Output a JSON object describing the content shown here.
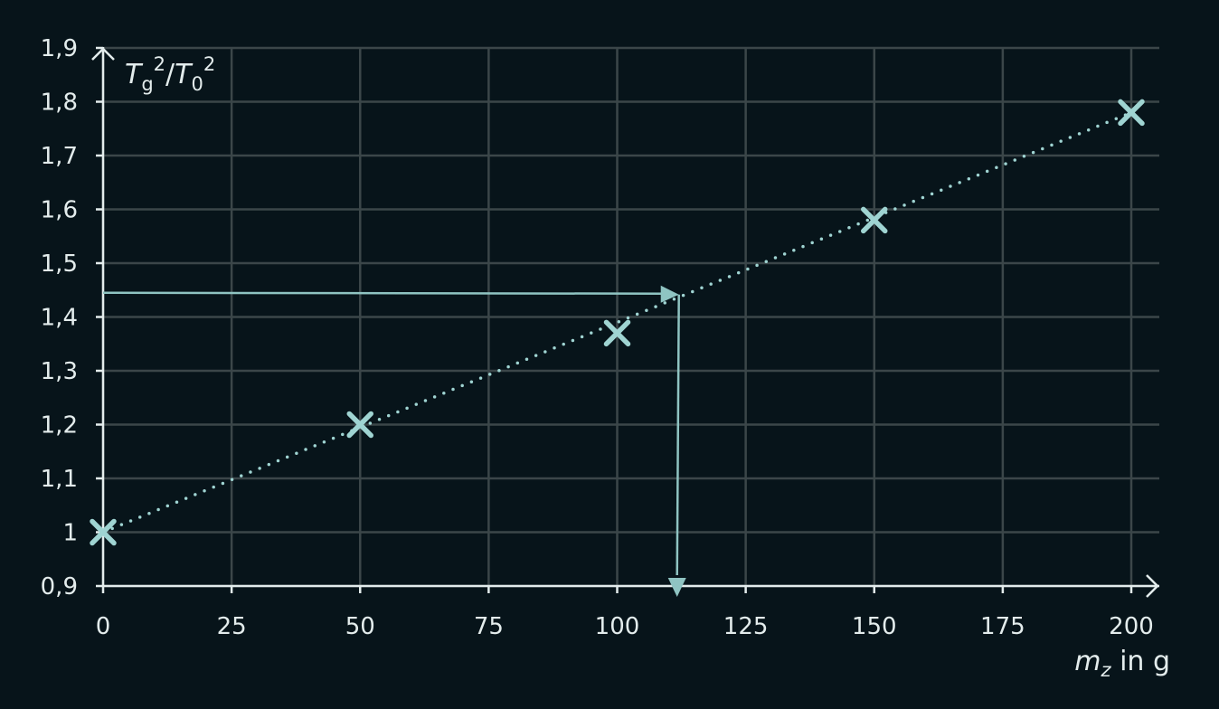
{
  "chart_data": {
    "type": "scatter",
    "x": [
      0,
      50,
      100,
      150,
      200
    ],
    "y": [
      1.0,
      1.2,
      1.37,
      1.58,
      1.78
    ],
    "trendline": {
      "style": "dotted",
      "from": [
        0,
        1.0
      ],
      "to": [
        200,
        1.78
      ]
    },
    "readoff": {
      "y": 1.445,
      "x": 112
    },
    "xlim": [
      0,
      200
    ],
    "ylim": [
      0.9,
      1.9
    ],
    "xticks": [
      "0",
      "25",
      "50",
      "75",
      "100",
      "125",
      "150",
      "175",
      "200"
    ],
    "yticks": [
      "0,9",
      "1",
      "1,1",
      "1,2",
      "1,3",
      "1,4",
      "1,5",
      "1,6",
      "1,7",
      "1,8",
      "1,9"
    ],
    "ylabel": {
      "T1": "T",
      "s1": "g",
      "p1": "2",
      "slash": "/",
      "T2": "T",
      "s2": "0",
      "p2": "2"
    },
    "xlabel": {
      "var": "m",
      "sub": "z",
      "rest": " in g"
    },
    "grid": true,
    "colors": {
      "background": "#07141a",
      "grid": "#3b4649",
      "axis": "#e3ecec",
      "marker": "#9fd4d2",
      "readoff": "#8fc4c2"
    }
  }
}
